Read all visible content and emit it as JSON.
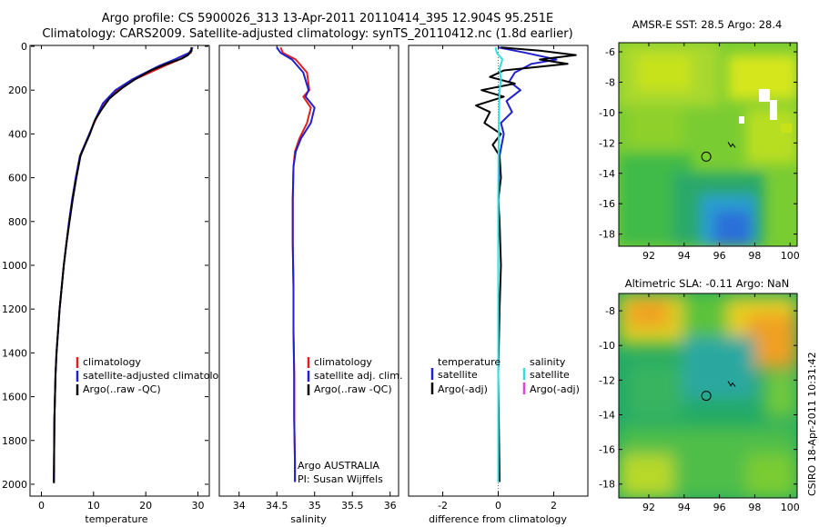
{
  "header": {
    "title_line1": "Argo profile: CS 5900026_313 13-Apr-2011 20110414_395 12.904S 95.251E",
    "title_line2": "Climatology: CARS2009. Satellite-adjusted climatology: synTS_20110412.nc (1.8d earlier)"
  },
  "side_label": "CSIRO 18-Apr-2011 10:31:42",
  "colors": {
    "climatology": "#e02020",
    "satellite": "#2020d0",
    "argo": "#000000",
    "sal_satellite": "#30e0e0",
    "sal_argo": "#e040e0"
  },
  "chart_data": [
    {
      "type": "line",
      "panel": "temperature",
      "xlabel": "temperature",
      "xlim": [
        -2,
        32
      ],
      "ylim": [
        2050,
        0
      ],
      "xticks": [
        0,
        10,
        20,
        30
      ],
      "yticks": [
        0,
        200,
        400,
        600,
        800,
        1000,
        1200,
        1400,
        1600,
        1800,
        2000
      ],
      "legend": [
        "climatology",
        "satellite-adjusted climatology",
        "Argo(..raw -QC)"
      ],
      "series": [
        {
          "name": "climatology",
          "color_key": "climatology",
          "x": [
            28.9,
            28.6,
            26.5,
            23.5,
            18.0,
            14.5,
            12.0,
            10.5,
            9.2,
            8.3,
            7.4,
            6.6,
            5.9,
            5.3,
            4.8,
            4.3,
            3.9,
            3.5,
            3.2,
            2.9,
            2.7,
            2.5,
            2.4
          ],
          "y": [
            5,
            30,
            60,
            90,
            150,
            200,
            260,
            330,
            400,
            450,
            500,
            600,
            700,
            800,
            900,
            1000,
            1100,
            1200,
            1300,
            1400,
            1500,
            1700,
            1990
          ]
        },
        {
          "name": "satellite-adjusted climatology",
          "color_key": "satellite",
          "x": [
            29.0,
            28.3,
            25.5,
            22.5,
            17.5,
            14.2,
            11.8,
            10.4,
            9.2,
            8.3,
            7.4,
            6.6,
            5.9,
            5.3,
            4.8,
            4.3,
            3.9,
            3.5,
            3.2,
            2.9,
            2.7,
            2.5,
            2.4
          ],
          "y": [
            5,
            30,
            60,
            90,
            150,
            200,
            260,
            330,
            400,
            450,
            500,
            600,
            700,
            800,
            900,
            1000,
            1100,
            1200,
            1300,
            1400,
            1500,
            1700,
            1990
          ]
        },
        {
          "name": "Argo(..raw -QC)",
          "color_key": "argo",
          "x": [
            28.7,
            28.8,
            28.1,
            27.0,
            24.0,
            21.0,
            18.0,
            15.5,
            14.2,
            13.0,
            11.5,
            10.2,
            9.3,
            8.4,
            7.5,
            6.7,
            6.0,
            5.4,
            4.8,
            4.3,
            3.9,
            3.5,
            3.2,
            2.9,
            2.7,
            2.5,
            2.4
          ],
          "y": [
            5,
            20,
            40,
            55,
            80,
            110,
            150,
            190,
            215,
            240,
            290,
            340,
            400,
            450,
            500,
            600,
            700,
            800,
            900,
            1000,
            1100,
            1200,
            1300,
            1400,
            1500,
            1700,
            1995
          ]
        }
      ]
    },
    {
      "type": "line",
      "panel": "salinity",
      "xlabel": "salinity",
      "xlim": [
        33.75,
        36.1
      ],
      "ylim": [
        2050,
        0
      ],
      "xticks": [
        34,
        34.5,
        35,
        35.5,
        36
      ],
      "legend": [
        "climatology",
        "satellite adj. clim.",
        "Argo(..raw -QC)"
      ],
      "annotation": [
        "Argo AUSTRALIA",
        "PI: Susan Wijffels"
      ],
      "series": [
        {
          "name": "climatology",
          "color_key": "climatology",
          "x": [
            34.55,
            34.58,
            34.75,
            34.9,
            34.93,
            34.85,
            34.95,
            34.9,
            34.8,
            34.74,
            34.72,
            34.71,
            34.71,
            34.72,
            34.72,
            34.73,
            34.73,
            34.74,
            34.74
          ],
          "y": [
            5,
            30,
            60,
            120,
            200,
            230,
            280,
            350,
            420,
            480,
            550,
            700,
            900,
            1100,
            1300,
            1500,
            1700,
            1900,
            1990
          ]
        },
        {
          "name": "satellite adj. clim.",
          "color_key": "satellite",
          "x": [
            34.5,
            34.55,
            34.7,
            34.85,
            34.92,
            34.88,
            35.0,
            34.95,
            34.82,
            34.75,
            34.72,
            34.71,
            34.71,
            34.72,
            34.72,
            34.73,
            34.73,
            34.74,
            34.74
          ],
          "y": [
            5,
            30,
            60,
            120,
            200,
            230,
            280,
            350,
            420,
            480,
            550,
            700,
            900,
            1100,
            1300,
            1500,
            1700,
            1900,
            1990
          ]
        }
      ]
    },
    {
      "type": "line",
      "panel": "difference",
      "xlabel": "difference from climatology",
      "xlim": [
        -3.2,
        3.2
      ],
      "ylim": [
        2050,
        0
      ],
      "xticks": [
        -2,
        0,
        2
      ],
      "legend": [
        "temperature",
        "satellite",
        "Argo(-adj)",
        "salinity",
        "satellite",
        "Argo(-adj)"
      ],
      "series": [
        {
          "name": "temperature satellite",
          "color_key": "satellite",
          "x": [
            0.0,
            1.0,
            2.1,
            1.2,
            0.6,
            0.4,
            0.8,
            0.3,
            0.5,
            0.1,
            0.2,
            0.05,
            0.02,
            0.0,
            0.0,
            0.0,
            0.0,
            0.0,
            0.0
          ],
          "y": [
            5,
            30,
            60,
            80,
            120,
            160,
            200,
            250,
            300,
            350,
            400,
            500,
            600,
            800,
            1000,
            1200,
            1500,
            1800,
            1990
          ]
        },
        {
          "name": "temperature Argo(-adj)",
          "color_key": "argo",
          "x": [
            0.1,
            1.5,
            2.8,
            1.5,
            2.5,
            0.2,
            -0.3,
            0.6,
            -0.6,
            0.2,
            -0.8,
            -0.3,
            -0.5,
            0.1,
            -0.2,
            0.05,
            0.1,
            0.0,
            0.05,
            0.1,
            0.05,
            0.0,
            0.05
          ],
          "y": [
            5,
            20,
            40,
            60,
            80,
            110,
            140,
            170,
            200,
            230,
            270,
            300,
            350,
            400,
            450,
            500,
            600,
            700,
            800,
            1000,
            1200,
            1500,
            1990
          ]
        },
        {
          "name": "salinity satellite",
          "color_key": "sal_satellite",
          "x": [
            -0.1,
            -0.05,
            0.15,
            0.05,
            0.1,
            0.05,
            0.03,
            0.02,
            0.01,
            0.0,
            0.0,
            0.0,
            0.0,
            0.0
          ],
          "y": [
            5,
            30,
            60,
            100,
            150,
            200,
            300,
            400,
            500,
            700,
            1000,
            1300,
            1600,
            1990
          ]
        }
      ]
    },
    {
      "type": "heatmap",
      "panel": "sst_map",
      "title": "AMSR-E SST: 28.5  Argo: 28.4",
      "xlim": [
        90.3,
        100.4
      ],
      "ylim": [
        -18.8,
        -5.4
      ],
      "xticks": [
        92,
        94,
        96,
        98,
        100
      ],
      "yticks": [
        -6,
        -8,
        -10,
        -12,
        -14,
        -16,
        -18
      ],
      "marker": {
        "lon": 95.251,
        "lat": -12.904
      }
    },
    {
      "type": "heatmap",
      "panel": "sla_map",
      "title": "Altimetric SLA: -0.11  Argo: NaN",
      "xlim": [
        90.3,
        100.4
      ],
      "ylim": [
        -18.8,
        -7.0
      ],
      "xticks": [
        92,
        94,
        96,
        98,
        100
      ],
      "yticks": [
        -8,
        -10,
        -12,
        -14,
        -16,
        -18
      ],
      "marker": {
        "lon": 95.251,
        "lat": -12.904
      }
    }
  ]
}
